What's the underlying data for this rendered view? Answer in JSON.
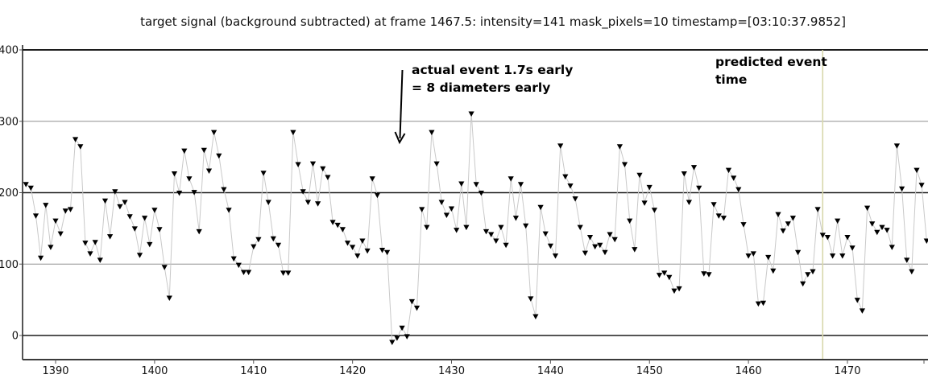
{
  "title": "target signal (background subtracted) at frame 1467.5: intensity=141 mask_pixels=10 timestamp=[03:10:37.9852]",
  "annotations": {
    "actual_event": {
      "line1": "actual event 1.7s early",
      "line2": "= 8 diameters early",
      "arrow_points_to_frame": 1424.75
    },
    "predicted_event": {
      "line1": "predicted event",
      "line2": "time",
      "marker_frame": 1467.5
    }
  },
  "colors": {
    "background": "#ffffff",
    "text": "#111111",
    "series_line": "#c9c9c9",
    "marker": "#000000",
    "grid_minor": "#8f8f8f",
    "grid_major": "#1c1c1c",
    "axis": "#3a3a3a",
    "tick": "#555555",
    "predicted_line": "#d8d8ab",
    "annotation_arrow": "#000000"
  },
  "chart_data": {
    "type": "line",
    "title": "target signal (background subtracted) at frame 1467.5: intensity=141 mask_pixels=10 timestamp=[03:10:37.9852]",
    "xlabel": "",
    "ylabel": "",
    "legend": "none",
    "grid": "horizontal-only",
    "xlim": [
      1386.66,
      1478.14
    ],
    "ylim": [
      0,
      400
    ],
    "y_ticks": [
      0,
      100,
      200,
      300,
      400
    ],
    "y_gridlines_major": [
      0,
      200,
      400
    ],
    "y_gridlines_minor": [
      100,
      300
    ],
    "x_ticks": [
      1390,
      1400,
      1410,
      1420,
      1430,
      1440,
      1450,
      1460,
      1470
    ],
    "predicted_event_frame": 1467.5,
    "marker_shape": "triangle-down",
    "x_start": 1387.0,
    "x_step": 0.5,
    "values": [
      212,
      207,
      168,
      109,
      183,
      124,
      161,
      143,
      175,
      177,
      275,
      265,
      130,
      115,
      131,
      106,
      189,
      139,
      202,
      181,
      187,
      167,
      150,
      113,
      165,
      128,
      176,
      149,
      96,
      53,
      227,
      200,
      259,
      220,
      201,
      146,
      260,
      231,
      285,
      252,
      205,
      176,
      108,
      99,
      89,
      89,
      125,
      135,
      228,
      187,
      136,
      127,
      88,
      88,
      285,
      240,
      202,
      187,
      241,
      185,
      234,
      222,
      159,
      155,
      149,
      130,
      124,
      112,
      133,
      119,
      220,
      197,
      120,
      117,
      -9,
      -3,
      11,
      -1,
      48,
      39,
      177,
      152,
      285,
      241,
      187,
      169,
      178,
      148,
      213,
      152,
      311,
      212,
      200,
      146,
      142,
      133,
      152,
      127,
      220,
      165,
      212,
      154,
      52,
      27,
      180,
      143,
      126,
      112,
      266,
      223,
      210,
      192,
      152,
      116,
      138,
      125,
      127,
      117,
      142,
      135,
      265,
      240,
      161,
      121,
      225,
      186,
      208,
      176,
      85,
      88,
      82,
      63,
      66,
      227,
      187,
      236,
      207,
      87,
      86,
      184,
      168,
      165,
      232,
      221,
      205,
      156,
      112,
      115,
      45,
      46,
      110,
      91,
      170,
      147,
      157,
      165,
      117,
      73,
      86,
      90,
      177,
      141,
      138,
      112,
      161,
      112,
      138,
      123,
      50,
      35,
      179,
      157,
      145,
      152,
      148,
      124,
      266,
      206,
      106,
      90,
      232,
      211,
      133
    ]
  }
}
